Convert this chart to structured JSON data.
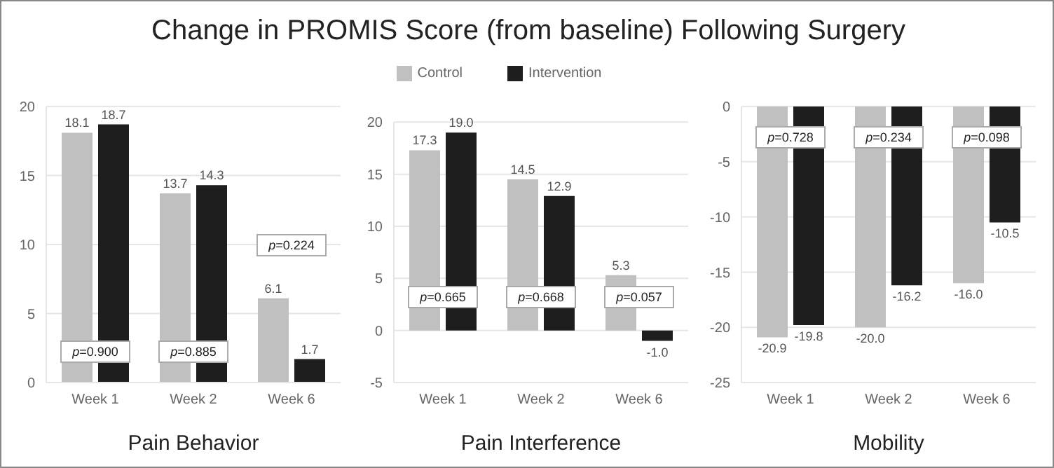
{
  "chart_data": [
    {
      "type": "bar",
      "title": "Change in PROMIS Score (from baseline) Following Surgery",
      "xlabel": "Pain Behavior",
      "categories": [
        "Week 1",
        "Week 2",
        "Week 6"
      ],
      "series": [
        {
          "color": "#c0c0c0",
          "values": [
            18.1,
            13.7,
            6.1
          ],
          "value_labels": [
            "18.1",
            "13.7",
            "6.1"
          ]
        },
        {
          "color": "#1e1e1e",
          "values": [
            18.7,
            14.3,
            1.7
          ],
          "value_labels": [
            "18.7",
            "14.3",
            "1.7"
          ]
        }
      ],
      "ylim": [
        0,
        20
      ],
      "yticks": [
        0,
        5,
        10,
        15,
        20
      ],
      "grid": "y",
      "annotations": [
        "p=0.900",
        "p=0.885",
        "p=0.224"
      ]
    },
    {
      "type": "bar",
      "xlabel": "Pain Interference",
      "categories": [
        "Week 1",
        "Week 2",
        "Week 6"
      ],
      "series": [
        {
          "name": "Control",
          "color": "#c0c0c0",
          "values": [
            17.3,
            14.5,
            5.3
          ],
          "value_labels": [
            "17.3",
            "14.5",
            "5.3"
          ]
        },
        {
          "name": "Intervention",
          "color": "#1e1e1e",
          "values": [
            19.0,
            12.9,
            -1.0
          ],
          "value_labels": [
            "19.0",
            "12.9",
            "-1.0"
          ]
        }
      ],
      "ylim": [
        -5,
        20
      ],
      "yticks": [
        -5,
        0,
        5,
        10,
        15,
        20
      ],
      "grid": "y",
      "legend": "top",
      "annotations": [
        "p=0.665",
        "p=0.668",
        "p=0.057"
      ]
    },
    {
      "type": "bar",
      "xlabel": "Mobility",
      "categories": [
        "Week 1",
        "Week 2",
        "Week 6"
      ],
      "series": [
        {
          "color": "#c0c0c0",
          "values": [
            -20.9,
            -20.0,
            -16.0
          ],
          "value_labels": [
            "-20.9",
            "-20.0",
            "-16.0"
          ]
        },
        {
          "color": "#1e1e1e",
          "values": [
            -19.8,
            -16.2,
            -10.5
          ],
          "value_labels": [
            "-19.8",
            "-16.2",
            "-10.5"
          ]
        }
      ],
      "ylim": [
        -25,
        0
      ],
      "yticks": [
        -25,
        -20,
        -15,
        -10,
        -5,
        0
      ],
      "grid": "y",
      "annotations": [
        "p=0.728",
        "p=0.234",
        "p=0.098"
      ]
    }
  ]
}
